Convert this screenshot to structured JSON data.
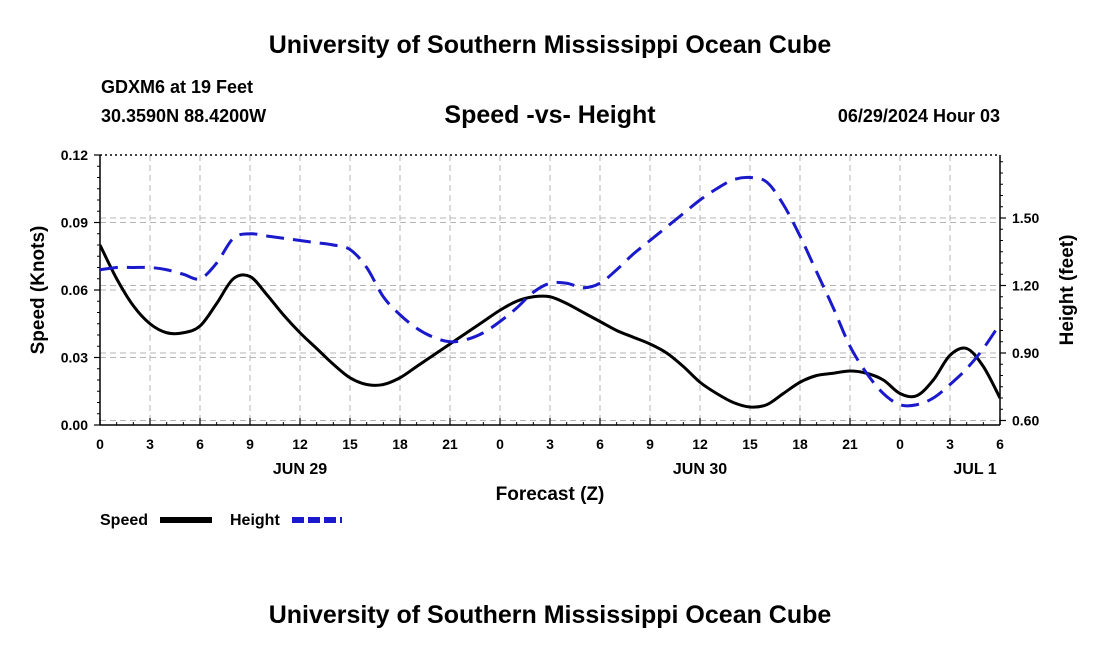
{
  "header": {
    "title": "University of Southern Mississippi Ocean Cube",
    "station": "GDXM6 at 19 Feet",
    "coordinates": "30.3590N  88.4200W",
    "datetime": "06/29/2024 Hour 03"
  },
  "footer": {
    "title": "University of Southern Mississippi Ocean Cube"
  },
  "colors": {
    "speed": "#000000",
    "height": "#1a1acc",
    "grid": "#b4b4b4"
  },
  "chart_data": {
    "type": "line",
    "title": "Speed -vs- Height",
    "xlabel": "Forecast (Z)",
    "ylabel": "Speed (Knots)",
    "y2label": "Height (feet)",
    "xlim": [
      0,
      54
    ],
    "ylim": [
      0,
      0.12
    ],
    "y2lim": [
      0.58,
      1.78
    ],
    "x_ticks": [
      0,
      3,
      6,
      9,
      12,
      15,
      18,
      21,
      24,
      27,
      30,
      33,
      36,
      39,
      42,
      45,
      48,
      51,
      54
    ],
    "x_tick_labels": [
      "0",
      "3",
      "6",
      "9",
      "12",
      "15",
      "18",
      "21",
      "0",
      "3",
      "6",
      "9",
      "12",
      "15",
      "18",
      "21",
      "0",
      "3",
      "6"
    ],
    "y_ticks": [
      0,
      0.03,
      0.06,
      0.09,
      0.12
    ],
    "y_tick_labels": [
      "0.00",
      "0.03",
      "0.06",
      "0.09",
      "0.12"
    ],
    "y2_ticks": [
      0.6,
      0.9,
      1.2,
      1.5
    ],
    "y2_tick_labels": [
      "0.60",
      "0.90",
      "1.20",
      "1.50"
    ],
    "date_labels": [
      {
        "x": 12,
        "text": "JUN 29"
      },
      {
        "x": 36,
        "text": "JUN 30"
      },
      {
        "x": 52.5,
        "text": "JUL 1"
      }
    ],
    "legend": [
      {
        "name": "Speed",
        "style": "solid"
      },
      {
        "name": "Height",
        "style": "dashed"
      }
    ],
    "legend_position": "bottom-left",
    "series": [
      {
        "name": "Speed",
        "axis": "left",
        "style": "solid",
        "x": [
          0,
          1,
          2,
          3,
          4,
          5,
          6,
          7,
          8,
          9,
          10,
          11,
          12,
          13,
          14,
          15,
          16,
          17,
          18,
          19,
          20,
          21,
          22,
          23,
          24,
          25,
          26,
          27,
          28,
          29,
          30,
          31,
          32,
          33,
          34,
          35,
          36,
          37,
          38,
          39,
          40,
          41,
          42,
          43,
          44,
          45,
          46,
          47,
          48,
          49,
          50,
          51,
          52,
          53,
          54
        ],
        "values": [
          0.08,
          0.065,
          0.053,
          0.045,
          0.041,
          0.041,
          0.044,
          0.054,
          0.065,
          0.066,
          0.058,
          0.049,
          0.041,
          0.034,
          0.027,
          0.021,
          0.018,
          0.018,
          0.021,
          0.026,
          0.031,
          0.036,
          0.041,
          0.046,
          0.051,
          0.055,
          0.057,
          0.057,
          0.054,
          0.05,
          0.046,
          0.042,
          0.039,
          0.036,
          0.032,
          0.026,
          0.019,
          0.014,
          0.01,
          0.008,
          0.009,
          0.014,
          0.019,
          0.022,
          0.023,
          0.024,
          0.023,
          0.02,
          0.014,
          0.013,
          0.02,
          0.031,
          0.034,
          0.026,
          0.012
        ]
      },
      {
        "name": "Height",
        "axis": "right",
        "style": "dashed",
        "x": [
          0,
          1,
          2,
          3,
          4,
          5,
          6,
          7,
          8,
          9,
          10,
          11,
          12,
          13,
          14,
          15,
          16,
          17,
          18,
          19,
          20,
          21,
          22,
          23,
          24,
          25,
          26,
          27,
          28,
          29,
          30,
          31,
          32,
          33,
          34,
          35,
          36,
          37,
          38,
          39,
          40,
          41,
          42,
          43,
          44,
          45,
          46,
          47,
          48,
          49,
          50,
          51,
          52,
          53,
          54
        ],
        "values": [
          1.27,
          1.28,
          1.28,
          1.28,
          1.27,
          1.25,
          1.23,
          1.3,
          1.41,
          1.43,
          1.42,
          1.41,
          1.4,
          1.39,
          1.38,
          1.36,
          1.28,
          1.15,
          1.07,
          1.01,
          0.97,
          0.95,
          0.96,
          0.99,
          1.04,
          1.1,
          1.17,
          1.21,
          1.21,
          1.19,
          1.21,
          1.27,
          1.34,
          1.4,
          1.46,
          1.52,
          1.58,
          1.63,
          1.67,
          1.68,
          1.66,
          1.56,
          1.42,
          1.26,
          1.1,
          0.93,
          0.81,
          0.72,
          0.67,
          0.67,
          0.7,
          0.76,
          0.83,
          0.92,
          1.03
        ]
      }
    ]
  }
}
